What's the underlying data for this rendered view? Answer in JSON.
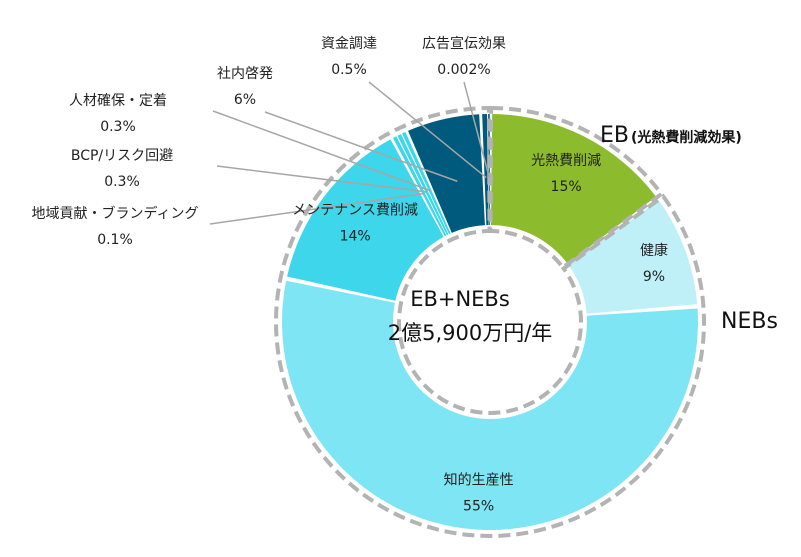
{
  "chart_data": {
    "type": "pie",
    "donut": true,
    "categories": [
      "光熱費削減",
      "健康",
      "知的生産性",
      "メンテナンス費削減",
      "地域貢献・ブランディング",
      "BCP/リスク回避",
      "人材確保・定着",
      "社内啓発",
      "資金調達",
      "広告宣伝効果"
    ],
    "values": [
      15,
      9,
      55,
      14,
      0.1,
      0.3,
      0.3,
      6,
      0.5,
      0.002
    ],
    "value_labels": [
      "15%",
      "9%",
      "55%",
      "14%",
      "0.1%",
      "0.3%",
      "0.3%",
      "6%",
      "0.5%",
      "0.002%"
    ],
    "colors": [
      "#8dbb2e",
      "#bfeff7",
      "#7ee5f4",
      "#3dd6ea",
      "#3dd6ea",
      "#3dd6ea",
      "#3dd6ea",
      "#005a7e",
      "#005a7e",
      "#005a7e"
    ],
    "groups": [
      {
        "label": "EB",
        "sublabel": "(光熱費削減効果)"
      },
      {
        "label": "NEBs",
        "sublabel": ""
      }
    ],
    "center_text": [
      "EB+NEBs",
      "2億5,900万円/年"
    ]
  }
}
